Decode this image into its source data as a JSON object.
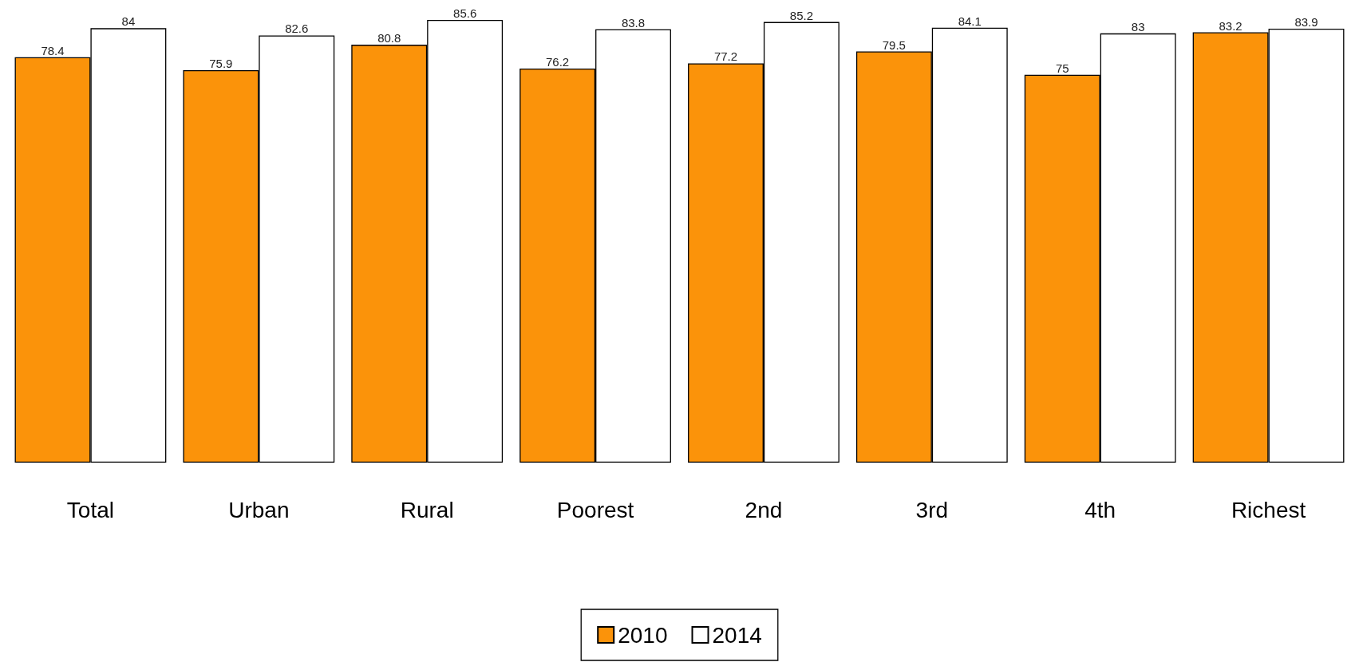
{
  "chart_data": {
    "type": "bar",
    "categories": [
      "Total",
      "Urban",
      "Rural",
      "Poorest",
      "2nd",
      "3rd",
      "4th",
      "Richest"
    ],
    "series": [
      {
        "name": "2010",
        "color": "#fb930a",
        "values": [
          78.4,
          75.9,
          80.8,
          76.2,
          77.2,
          79.5,
          75,
          83.2
        ]
      },
      {
        "name": "2014",
        "color": "#ffffff",
        "values": [
          84,
          82.6,
          85.6,
          83.8,
          85.2,
          84.1,
          83,
          83.9
        ]
      }
    ],
    "data_labels": true,
    "legend": "bottom"
  }
}
